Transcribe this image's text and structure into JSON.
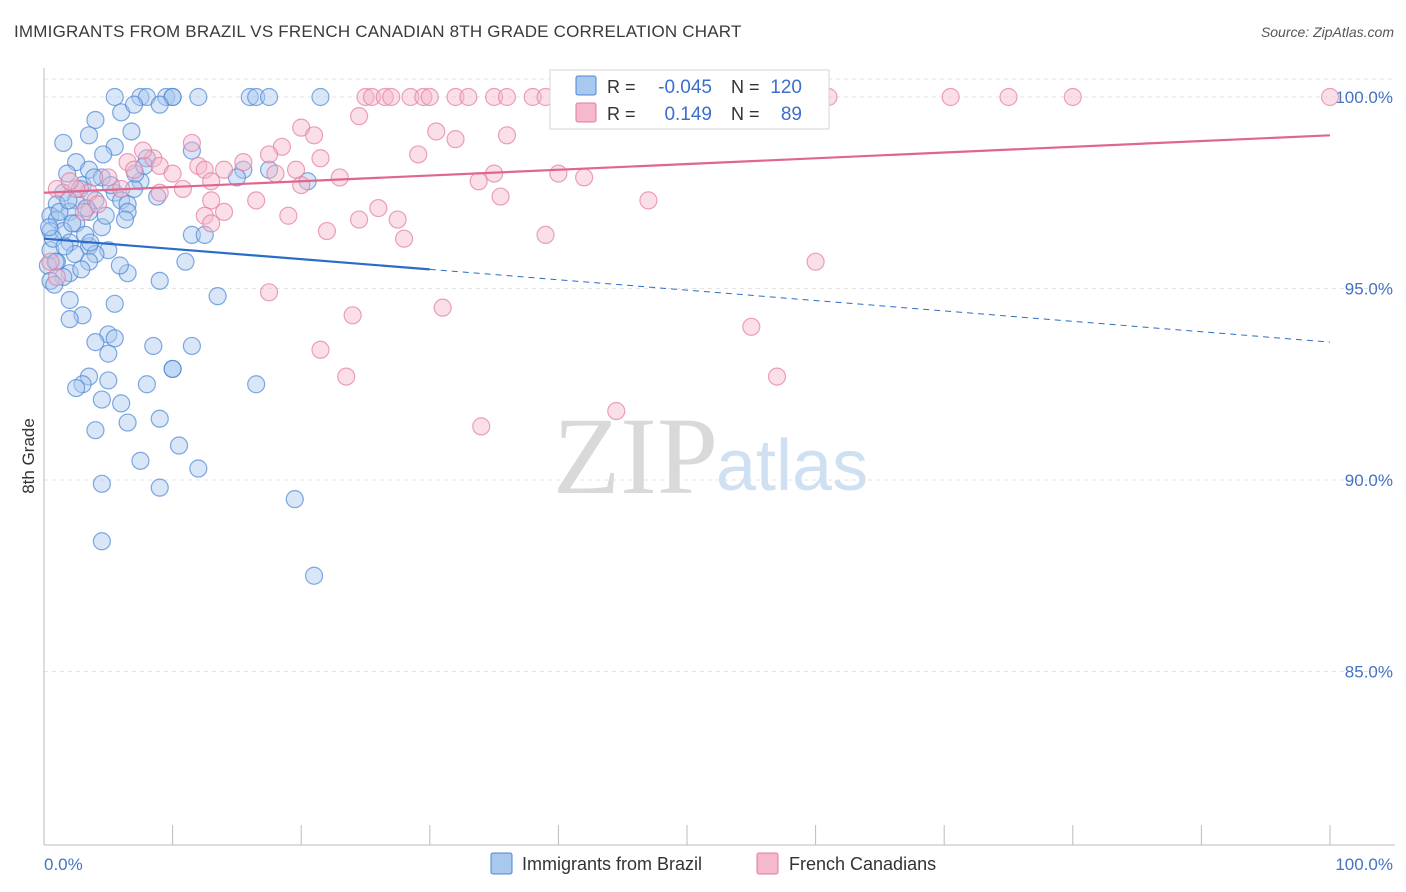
{
  "title": "IMMIGRANTS FROM BRAZIL VS FRENCH CANADIAN 8TH GRADE CORRELATION CHART",
  "source": "Source: ZipAtlas.com",
  "watermark": {
    "zip": "ZIP",
    "atlas": "atlas"
  },
  "colors": {
    "brazil_fill": "#a9c8ee",
    "brazil_stroke": "#4a86d4",
    "brazil_line": "#2b6cc8",
    "french_fill": "#f5b8cc",
    "french_stroke": "#e47a9f",
    "french_line": "#e0668f",
    "tick_text": "#4472c4",
    "grid": "#e3e3e3"
  },
  "stats": {
    "r_label": "R =",
    "n_label": "N =",
    "brazil": {
      "r": "-0.045",
      "n": "120"
    },
    "french": {
      "r": "0.149",
      "n": "89"
    }
  },
  "chart_data": {
    "type": "scatter",
    "title": "IMMIGRANTS FROM BRAZIL VS FRENCH CANADIAN 8TH GRADE CORRELATION CHART",
    "xlabel": "",
    "ylabel": "8th Grade",
    "xlim": [
      0,
      100
    ],
    "ylim": [
      80.5,
      100.8
    ],
    "x_tick_labels": [
      "0.0%",
      "100.0%"
    ],
    "y_ticks": [
      {
        "value": 100,
        "label": "100.0%"
      },
      {
        "value": 95,
        "label": "95.0%"
      },
      {
        "value": 90,
        "label": "90.0%"
      },
      {
        "value": 85,
        "label": "85.0%"
      }
    ],
    "legend": [
      "Immigrants from Brazil",
      "French Canadians"
    ],
    "series": [
      {
        "name": "Immigrants from Brazil",
        "trend": {
          "x_start": 0,
          "y_start": 96.3,
          "x_solid_end": 30,
          "y_solid_end": 95.5,
          "x_end": 100,
          "y_end": 93.6
        },
        "points": [
          [
            5.5,
            100
          ],
          [
            7.5,
            100
          ],
          [
            8,
            100
          ],
          [
            9.5,
            100
          ],
          [
            10,
            100
          ],
          [
            10,
            100
          ],
          [
            12,
            100
          ],
          [
            16,
            100
          ],
          [
            16.5,
            100
          ],
          [
            17.5,
            100
          ],
          [
            21.5,
            100
          ],
          [
            9,
            99.8
          ],
          [
            6,
            99.6
          ],
          [
            7,
            99.8
          ],
          [
            4,
            99.4
          ],
          [
            3.5,
            99.0
          ],
          [
            5.5,
            98.7
          ],
          [
            8,
            98.4
          ],
          [
            11.5,
            98.6
          ],
          [
            2.5,
            98.3
          ],
          [
            3.5,
            98.1
          ],
          [
            1.8,
            98.0
          ],
          [
            4.5,
            97.9
          ],
          [
            7.5,
            97.8
          ],
          [
            15.5,
            98.1
          ],
          [
            17.5,
            98.1
          ],
          [
            20.5,
            97.8
          ],
          [
            3,
            97.7
          ],
          [
            5.5,
            97.5
          ],
          [
            7,
            97.6
          ],
          [
            1.5,
            97.5
          ],
          [
            2.5,
            97.3
          ],
          [
            4.0,
            97.3
          ],
          [
            6,
            97.3
          ],
          [
            6.5,
            97.2
          ],
          [
            1.0,
            97.2
          ],
          [
            2.0,
            97.0
          ],
          [
            3.5,
            97.0
          ],
          [
            6.5,
            97.0
          ],
          [
            0.5,
            96.9
          ],
          [
            1.0,
            96.8
          ],
          [
            2.5,
            96.7
          ],
          [
            4.5,
            96.6
          ],
          [
            0.5,
            96.5
          ],
          [
            1.5,
            96.5
          ],
          [
            11.5,
            96.4
          ],
          [
            12.5,
            96.4
          ],
          [
            2.0,
            96.2
          ],
          [
            3.5,
            96.1
          ],
          [
            5.0,
            96.0
          ],
          [
            0.5,
            96.0
          ],
          [
            4.0,
            95.9
          ],
          [
            1.0,
            95.7
          ],
          [
            3.5,
            95.7
          ],
          [
            11,
            95.7
          ],
          [
            0.3,
            95.6
          ],
          [
            2.0,
            95.4
          ],
          [
            6.5,
            95.4
          ],
          [
            1.5,
            95.3
          ],
          [
            0.5,
            95.2
          ],
          [
            9,
            95.2
          ],
          [
            13.5,
            94.8
          ],
          [
            2.0,
            94.7
          ],
          [
            5.5,
            94.6
          ],
          [
            3.0,
            94.3
          ],
          [
            2.0,
            94.2
          ],
          [
            5.0,
            93.8
          ],
          [
            5.5,
            93.7
          ],
          [
            4.0,
            93.6
          ],
          [
            8.5,
            93.5
          ],
          [
            11.5,
            93.5
          ],
          [
            5.0,
            93.3
          ],
          [
            10,
            92.9
          ],
          [
            10,
            92.9
          ],
          [
            3.5,
            92.7
          ],
          [
            5.0,
            92.6
          ],
          [
            3.0,
            92.5
          ],
          [
            2.5,
            92.4
          ],
          [
            8.0,
            92.5
          ],
          [
            16.5,
            92.5
          ],
          [
            4.5,
            92.1
          ],
          [
            6.0,
            92.0
          ],
          [
            6.5,
            91.5
          ],
          [
            9.0,
            91.6
          ],
          [
            4.0,
            91.3
          ],
          [
            10.5,
            90.9
          ],
          [
            7.5,
            90.5
          ],
          [
            12.0,
            90.3
          ],
          [
            4.5,
            89.9
          ],
          [
            9.0,
            89.8
          ],
          [
            19.5,
            89.5
          ],
          [
            4.5,
            88.4
          ],
          [
            21,
            87.5
          ],
          [
            1.5,
            98.8
          ],
          [
            2.8,
            97.6
          ],
          [
            4.6,
            98.5
          ],
          [
            3.2,
            96.4
          ],
          [
            0.8,
            95.1
          ],
          [
            6.3,
            96.8
          ],
          [
            3.9,
            97.9
          ],
          [
            1.2,
            97.0
          ],
          [
            2.2,
            96.7
          ],
          [
            5.2,
            97.7
          ],
          [
            8.8,
            97.4
          ],
          [
            15.0,
            97.9
          ],
          [
            0.7,
            96.3
          ],
          [
            2.4,
            95.9
          ],
          [
            3.3,
            97.1
          ],
          [
            4.8,
            96.9
          ],
          [
            1.6,
            96.1
          ],
          [
            7.1,
            98.0
          ],
          [
            0.4,
            96.6
          ],
          [
            2.9,
            95.5
          ],
          [
            5.9,
            95.6
          ],
          [
            6.8,
            99.1
          ],
          [
            1.9,
            97.3
          ],
          [
            3.6,
            96.2
          ],
          [
            0.9,
            95.7
          ],
          [
            7.8,
            98.2
          ]
        ]
      },
      {
        "name": "French Canadians",
        "trend": {
          "x_start": 0,
          "y_start": 97.5,
          "x_end": 100,
          "y_end": 99.0
        },
        "points": [
          [
            25,
            100
          ],
          [
            25.5,
            100
          ],
          [
            26.5,
            100
          ],
          [
            27,
            100
          ],
          [
            28.5,
            100
          ],
          [
            29.5,
            100
          ],
          [
            30,
            100
          ],
          [
            32,
            100
          ],
          [
            33,
            100
          ],
          [
            35,
            100
          ],
          [
            36,
            100
          ],
          [
            38,
            100
          ],
          [
            39,
            100
          ],
          [
            40.5,
            100
          ],
          [
            42,
            100
          ],
          [
            46,
            100
          ],
          [
            48,
            100
          ],
          [
            55.5,
            100
          ],
          [
            61,
            100
          ],
          [
            70.5,
            100
          ],
          [
            75,
            100
          ],
          [
            80,
            100
          ],
          [
            100,
            100
          ],
          [
            24.5,
            99.5
          ],
          [
            20,
            99.2
          ],
          [
            21,
            99.0
          ],
          [
            30.5,
            99.1
          ],
          [
            36,
            99.0
          ],
          [
            32,
            98.9
          ],
          [
            18.5,
            98.7
          ],
          [
            11.5,
            98.8
          ],
          [
            17.5,
            98.5
          ],
          [
            8.5,
            98.4
          ],
          [
            21.5,
            98.4
          ],
          [
            6.5,
            98.3
          ],
          [
            9.0,
            98.2
          ],
          [
            12,
            98.2
          ],
          [
            14,
            98.1
          ],
          [
            12.5,
            98.1
          ],
          [
            7,
            98.1
          ],
          [
            10,
            98.0
          ],
          [
            18,
            98.0
          ],
          [
            23,
            97.9
          ],
          [
            35,
            98.0
          ],
          [
            40,
            98.0
          ],
          [
            42,
            97.9
          ],
          [
            13,
            97.8
          ],
          [
            5,
            97.9
          ],
          [
            1,
            97.6
          ],
          [
            3.5,
            97.5
          ],
          [
            9,
            97.5
          ],
          [
            2.5,
            97.6
          ],
          [
            20,
            97.7
          ],
          [
            6,
            97.6
          ],
          [
            35.5,
            97.4
          ],
          [
            47,
            97.3
          ],
          [
            13,
            97.3
          ],
          [
            16.5,
            97.3
          ],
          [
            14,
            97.0
          ],
          [
            19,
            96.9
          ],
          [
            24.5,
            96.8
          ],
          [
            12.5,
            96.9
          ],
          [
            27.5,
            96.8
          ],
          [
            13,
            96.7
          ],
          [
            22,
            96.5
          ],
          [
            28,
            96.3
          ],
          [
            39,
            96.4
          ],
          [
            0.5,
            95.7
          ],
          [
            1.0,
            95.3
          ],
          [
            60,
            95.7
          ],
          [
            17.5,
            94.9
          ],
          [
            31,
            94.5
          ],
          [
            24.0,
            94.3
          ],
          [
            55,
            94.0
          ],
          [
            21.5,
            93.4
          ],
          [
            23.5,
            92.7
          ],
          [
            57,
            92.7
          ],
          [
            44.5,
            91.8
          ],
          [
            34,
            91.4
          ],
          [
            2.0,
            97.8
          ],
          [
            4.2,
            97.2
          ],
          [
            7.7,
            98.6
          ],
          [
            10.8,
            97.6
          ],
          [
            15.5,
            98.3
          ],
          [
            19.6,
            98.1
          ],
          [
            26.0,
            97.1
          ],
          [
            29.1,
            98.5
          ],
          [
            33.8,
            97.8
          ],
          [
            3.1,
            97.0
          ]
        ]
      }
    ]
  }
}
